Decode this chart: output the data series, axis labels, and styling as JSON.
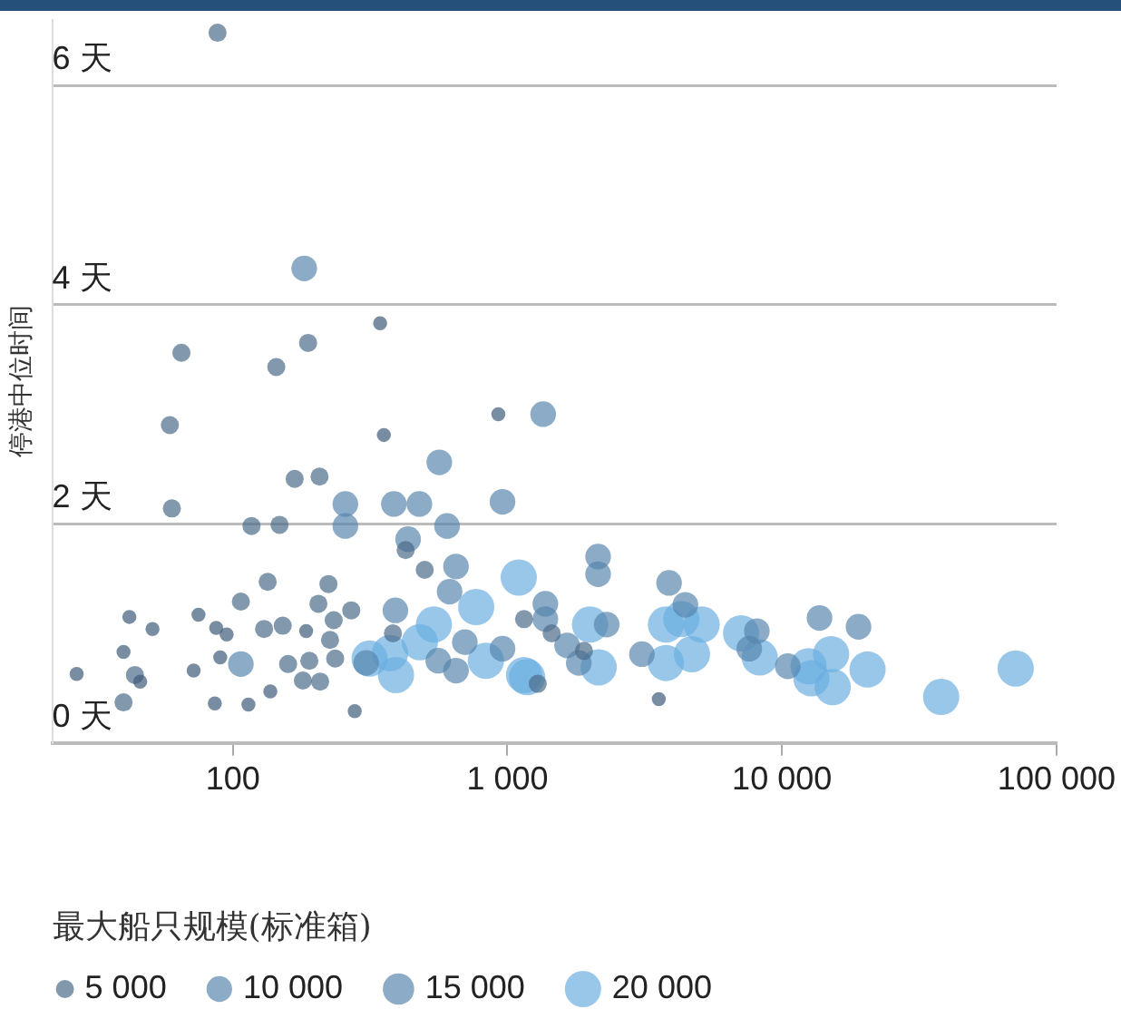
{
  "chart_data": {
    "type": "bubble",
    "ylabel": "停港中位时间",
    "legend_title": "最大船只规模(标准箱)",
    "grid": "y",
    "log": "x",
    "xlim": [
      22,
      100000
    ],
    "xticks": [
      100,
      {
        "value": 1000,
        "label": "1 000"
      },
      {
        "value": 10000,
        "label": "10 000"
      },
      {
        "value": 100000,
        "label": "100 000"
      }
    ],
    "ylim": [
      0,
      6.6
    ],
    "yticks": [
      {
        "value": 0,
        "label": "0 天"
      },
      {
        "value": 2,
        "label": "2 天"
      },
      {
        "value": 4,
        "label": "4 天"
      },
      {
        "value": 6,
        "label": "6 天"
      }
    ],
    "size_legend": [
      {
        "value": 5000,
        "label": "5 000"
      },
      {
        "value": 10000,
        "label": "10 000"
      },
      {
        "value": 15000,
        "label": "15 000"
      },
      {
        "value": 20000,
        "label": "20 000"
      }
    ],
    "series": [
      {
        "color": "#3d5a78",
        "x": [
          344,
          355,
          927,
          75,
          42,
          51,
          185,
          87,
          95,
          40,
          27,
          46,
          72,
          90,
          86,
          114,
          137,
          278,
          3560
        ],
        "values": [
          3.83,
          2.81,
          3.0,
          1.17,
          1.15,
          1.04,
          1.02,
          1.05,
          0.99,
          0.83,
          0.63,
          0.56,
          0.66,
          0.78,
          0.36,
          0.35,
          0.47,
          0.29,
          0.4
        ],
        "sizes": [
          3000,
          3000,
          3000,
          3000,
          3000,
          3000,
          3000,
          3000,
          3000,
          3000,
          3000,
          3000,
          3000,
          3000,
          3000,
          3000,
          3000,
          3000,
          3000
        ]
      },
      {
        "color": "#4a6a88",
        "x": [
          88,
          65,
          188,
          144,
          59,
          60,
          168,
          207,
          117,
          148,
          426,
          500,
          134,
          107,
          223,
          205,
          270,
          130,
          152,
          233,
          44,
          159,
          190,
          236,
          180,
          208,
          40,
          1290,
          1150,
          383,
          226,
          1450,
          1900
        ],
        "values": [
          6.48,
          3.56,
          3.65,
          3.43,
          2.9,
          2.14,
          2.41,
          2.43,
          1.98,
          1.99,
          1.76,
          1.58,
          1.47,
          1.29,
          1.45,
          1.27,
          1.21,
          1.04,
          1.07,
          1.12,
          0.62,
          0.72,
          0.75,
          0.77,
          0.57,
          0.56,
          0.37,
          0.54,
          1.13,
          1.0,
          0.94,
          1.0,
          0.84
        ],
        "sizes": [
          5000,
          5000,
          5000,
          5000,
          5000,
          5000,
          5000,
          5000,
          5000,
          5000,
          5000,
          5000,
          5000,
          5000,
          5000,
          5000,
          5000,
          5000,
          5000,
          5000,
          5000,
          5000,
          5000,
          5000,
          5000,
          5000,
          5000,
          5000,
          5000,
          5000,
          5000,
          5000,
          5000
        ]
      },
      {
        "color": "#5786ad",
        "x": [
          182,
          1350,
          565,
          257,
          386,
          478,
          960,
          257,
          603,
          435,
          650,
          391,
          616,
          107,
          306,
          560,
          700,
          650,
          960,
          1375,
          2140,
          2140,
          3880,
          4450,
          1375,
          2300,
          1650,
          1820,
          3090,
          8100,
          7600,
          10500,
          13700,
          19000
        ],
        "values": [
          4.33,
          3.0,
          2.56,
          2.18,
          2.18,
          2.18,
          2.2,
          1.98,
          1.98,
          1.86,
          1.61,
          1.21,
          1.38,
          0.72,
          0.73,
          0.75,
          0.92,
          0.66,
          0.86,
          1.13,
          1.7,
          1.54,
          1.46,
          1.26,
          1.27,
          1.08,
          0.89,
          0.73,
          0.81,
          1.02,
          0.86,
          0.7,
          1.14,
          1.06
        ],
        "sizes": [
          10000,
          10000,
          10000,
          10000,
          10000,
          10000,
          10000,
          10000,
          10000,
          10000,
          10000,
          10000,
          10000,
          10000,
          10000,
          10000,
          10000,
          10000,
          10000,
          10000,
          10000,
          10000,
          10000,
          10000,
          10000,
          10000,
          10000,
          10000,
          10000,
          10000,
          10000,
          10000,
          10000,
          10000
        ]
      },
      {
        "color": "#6aaee0",
        "x": [
          1100,
          770,
          315,
          374,
          393,
          480,
          540,
          835,
          1150,
          2000,
          2150,
          1180,
          3780,
          4300,
          5100,
          4700,
          3780,
          7100,
          8300,
          12500,
          12800,
          15100,
          15300,
          20500,
          38000,
          71000
        ],
        "values": [
          1.51,
          1.24,
          0.77,
          0.82,
          0.62,
          0.92,
          1.08,
          0.75,
          0.62,
          1.08,
          0.69,
          0.6,
          1.08,
          1.13,
          1.08,
          0.81,
          0.73,
          1.0,
          0.78,
          0.7,
          0.59,
          0.81,
          0.51,
          0.67,
          0.42,
          0.68
        ],
        "sizes": [
          20000,
          20000,
          20000,
          20000,
          20000,
          20000,
          20000,
          20000,
          20000,
          20000,
          20000,
          20000,
          20000,
          20000,
          20000,
          20000,
          20000,
          20000,
          20000,
          20000,
          20000,
          20000,
          20000,
          20000,
          20000,
          20000
        ]
      }
    ]
  }
}
